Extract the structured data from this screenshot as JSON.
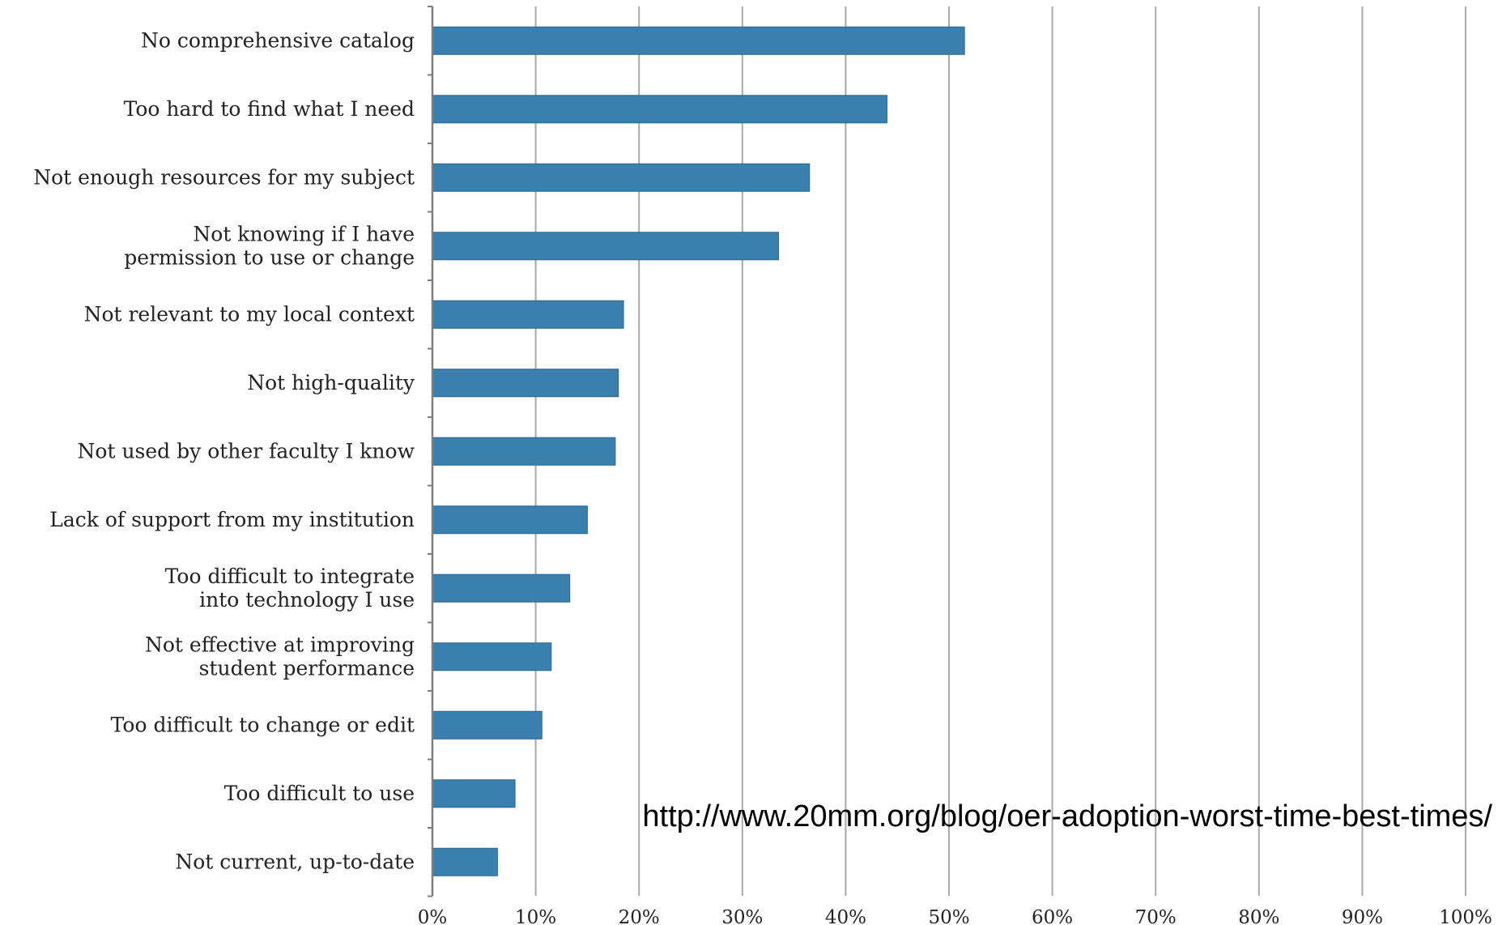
{
  "colors": {
    "bar": "#3a80ae",
    "bar_edge": "#2a6590",
    "grid": "#a9a9a9",
    "axis": "#7f7f7f"
  },
  "source_note": "http://www.20mm.org/blog/oer-adoption-worst-time-best-times/",
  "chart_data": {
    "type": "bar",
    "orientation": "horizontal",
    "title": "",
    "xlabel": "",
    "ylabel": "",
    "xlim": [
      0,
      100
    ],
    "grid": true,
    "legend": "none",
    "x_tick_labels": [
      "0%",
      "10%",
      "20%",
      "30%",
      "40%",
      "50%",
      "60%",
      "70%",
      "80%",
      "90%",
      "100%"
    ],
    "categories": [
      [
        "No comprehensive catalog"
      ],
      [
        "Too hard to find what I need"
      ],
      [
        "Not enough resources for my subject"
      ],
      [
        "Not knowing if I have",
        "permission to use or change"
      ],
      [
        "Not relevant to my local context"
      ],
      [
        "Not high-quality"
      ],
      [
        "Not used by other faculty I know"
      ],
      [
        "Lack of support from my institution"
      ],
      [
        "Too difficult to integrate",
        "into technology I use"
      ],
      [
        "Not effective at improving",
        "student performance"
      ],
      [
        "Too difficult to change or edit"
      ],
      [
        "Too difficult to use"
      ],
      [
        "Not current, up-to-date"
      ]
    ],
    "values": [
      51.5,
      44,
      36.5,
      33.5,
      18.5,
      18,
      17.7,
      15,
      13.3,
      11.5,
      10.6,
      8,
      6.3
    ]
  }
}
